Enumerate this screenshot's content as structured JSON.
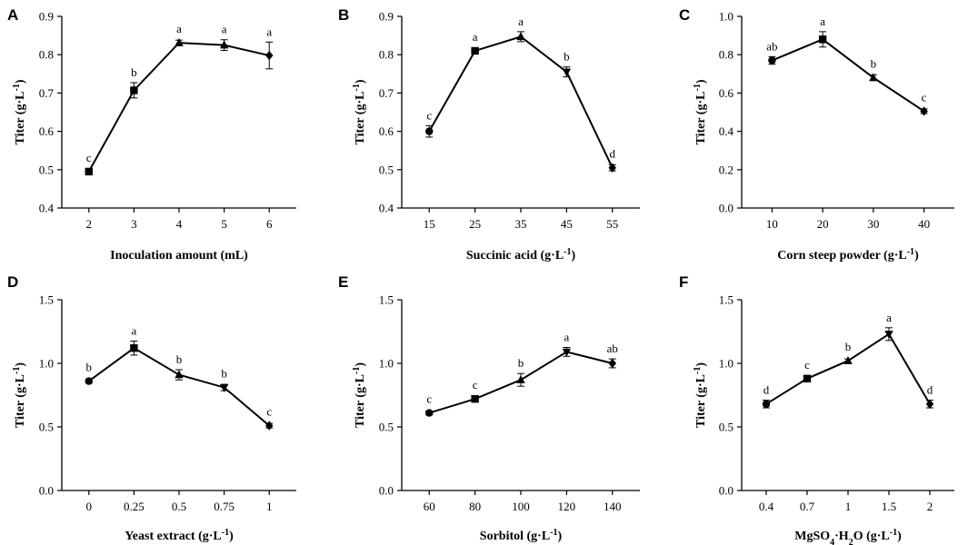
{
  "chart_data": [
    {
      "panel": "A",
      "type": "line",
      "categories": [
        "2",
        "3",
        "4",
        "5",
        "6"
      ],
      "values": [
        0.495,
        0.707,
        0.831,
        0.825,
        0.798
      ],
      "errors": [
        0.006,
        0.02,
        0.007,
        0.014,
        0.035
      ],
      "sig_letters": [
        "c",
        "b",
        "a",
        "a",
        "a"
      ],
      "markers": [
        "square",
        "square",
        "triangle-up",
        "triangle-up",
        "diamond"
      ],
      "ylim": [
        0.4,
        0.9
      ],
      "yticks": [
        "0.4",
        "0.5",
        "0.6",
        "0.7",
        "0.8",
        "0.9"
      ],
      "ylabel": {
        "base": "Titer (g·L",
        "sup": "-1",
        "tail": ")"
      },
      "xlabel": {
        "base": "Inoculation amount (mL)",
        "sub": "",
        "mid": "",
        "sup": "",
        "tail": ""
      }
    },
    {
      "panel": "B",
      "type": "line",
      "categories": [
        "15",
        "25",
        "35",
        "45",
        "55"
      ],
      "values": [
        0.6,
        0.81,
        0.847,
        0.755,
        0.505
      ],
      "errors": [
        0.015,
        0.006,
        0.013,
        0.013,
        0.008
      ],
      "sig_letters": [
        "c",
        "a",
        "a",
        "b",
        "d"
      ],
      "markers": [
        "circle",
        "square",
        "triangle-up",
        "triangle-down",
        "diamond"
      ],
      "ylim": [
        0.4,
        0.9
      ],
      "yticks": [
        "0.4",
        "0.5",
        "0.6",
        "0.7",
        "0.8",
        "0.9"
      ],
      "ylabel": {
        "base": "Titer (g·L",
        "sup": "-1",
        "tail": ")"
      },
      "xlabel": {
        "base": "Succinic acid (g·L",
        "sub": "",
        "mid": "",
        "sup": "-1",
        "tail": ")"
      }
    },
    {
      "panel": "C",
      "type": "line",
      "categories": [
        "10",
        "20",
        "30",
        "40"
      ],
      "values": [
        0.77,
        0.88,
        0.68,
        0.505
      ],
      "errors": [
        0.02,
        0.04,
        0.015,
        0.012
      ],
      "sig_letters": [
        "ab",
        "a",
        "b",
        "c"
      ],
      "markers": [
        "circle",
        "square",
        "triangle-up",
        "diamond"
      ],
      "ylim": [
        0.0,
        1.0
      ],
      "yticks": [
        "0.0",
        "0.2",
        "0.4",
        "0.6",
        "0.8",
        "1.0"
      ],
      "ylabel": {
        "base": "Titer (g·L",
        "sup": "-1",
        "tail": ")"
      },
      "xlabel": {
        "base": "Corn steep powder (g·L",
        "sub": "",
        "mid": "",
        "sup": "-1",
        "tail": ")"
      }
    },
    {
      "panel": "D",
      "type": "line",
      "categories": [
        "0",
        "0.25",
        "0.5",
        "0.75",
        "1"
      ],
      "values": [
        0.86,
        1.12,
        0.91,
        0.81,
        0.51
      ],
      "errors": [
        0.015,
        0.055,
        0.04,
        0.025,
        0.018
      ],
      "sig_letters": [
        "b",
        "a",
        "b",
        "b",
        "c"
      ],
      "markers": [
        "circle",
        "square",
        "triangle-up",
        "triangle-down",
        "diamond"
      ],
      "ylim": [
        0.0,
        1.5
      ],
      "yticks": [
        "0.0",
        "0.5",
        "1.0",
        "1.5"
      ],
      "ylabel": {
        "base": "Titer (g·L",
        "sup": "-1",
        "tail": ")"
      },
      "xlabel": {
        "base": "Yeast extract (g·L",
        "sub": "",
        "mid": "",
        "sup": "-1",
        "tail": ")"
      }
    },
    {
      "panel": "E",
      "type": "line",
      "categories": [
        "60",
        "80",
        "100",
        "120",
        "140"
      ],
      "values": [
        0.61,
        0.72,
        0.87,
        1.09,
        1.0
      ],
      "errors": [
        0.015,
        0.015,
        0.05,
        0.035,
        0.035
      ],
      "sig_letters": [
        "c",
        "c",
        "b",
        "a",
        "ab"
      ],
      "markers": [
        "circle",
        "square",
        "triangle-up",
        "triangle-down",
        "diamond"
      ],
      "ylim": [
        0.0,
        1.5
      ],
      "yticks": [
        "0.0",
        "0.5",
        "1.0",
        "1.5"
      ],
      "ylabel": {
        "base": "Titer (g·L",
        "sup": "-1",
        "tail": ")"
      },
      "xlabel": {
        "base": "Sorbitol (g·L",
        "sub": "",
        "mid": "",
        "sup": "-1",
        "tail": ")"
      }
    },
    {
      "panel": "F",
      "type": "line",
      "categories": [
        "0.4",
        "0.7",
        "1",
        "1.5",
        "2"
      ],
      "values": [
        0.68,
        0.88,
        1.02,
        1.23,
        0.68
      ],
      "errors": [
        0.03,
        0.015,
        0.015,
        0.05,
        0.03
      ],
      "sig_letters": [
        "d",
        "c",
        "b",
        "a",
        "d"
      ],
      "markers": [
        "circle",
        "square",
        "triangle-up",
        "triangle-down",
        "diamond"
      ],
      "ylim": [
        0.0,
        1.5
      ],
      "yticks": [
        "0.0",
        "0.5",
        "1.0",
        "1.5"
      ],
      "ylabel": {
        "base": "Titer (g·L",
        "sup": "-1",
        "tail": ")"
      },
      "xlabel": {
        "base": "MgSO",
        "sub": "4",
        "mid": "·H",
        "sub2": "2",
        "mid2": "O (g·L",
        "sup": "-1",
        "tail": ")"
      }
    }
  ]
}
